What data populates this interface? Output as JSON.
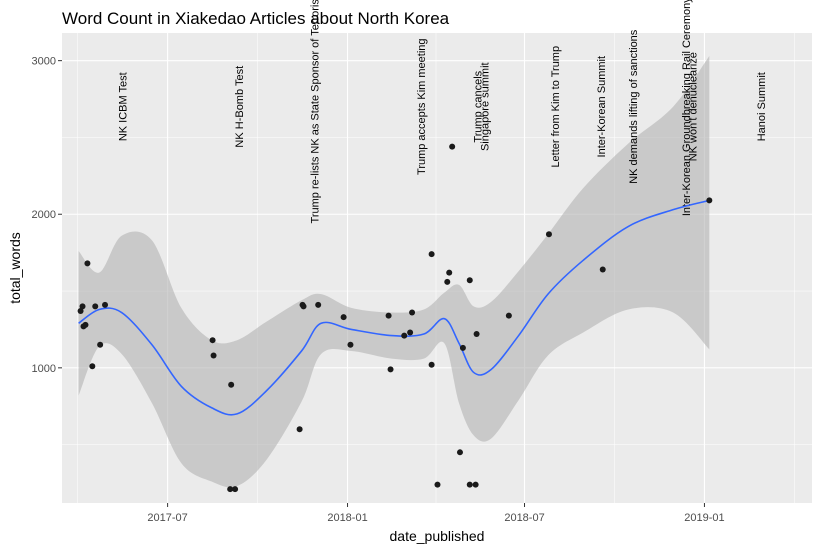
{
  "chart_data": {
    "type": "scatter",
    "title": "Word Count in Xiakedao Articles about North Korea",
    "xlabel": "date_published",
    "ylabel": "total_words",
    "xlim": [
      "2017-03-15",
      "2019-04-21"
    ],
    "ylim": [
      120,
      3180
    ],
    "x_ticks": [
      {
        "date": "2017-07-01",
        "label": "2017-07"
      },
      {
        "date": "2018-01-01",
        "label": "2018-01"
      },
      {
        "date": "2018-07-01",
        "label": "2018-07"
      },
      {
        "date": "2019-01-01",
        "label": "2019-01"
      }
    ],
    "y_ticks": [
      1000,
      2000,
      3000
    ],
    "grid": true,
    "colors": {
      "panel": "#ebebeb",
      "grid": "#ffffff",
      "points": "#1a1a1a",
      "smooth": "#3366ff",
      "ribbon": "#b3b3b3"
    },
    "points": [
      {
        "x": "2017-04-03",
        "y": 1370
      },
      {
        "x": "2017-04-05",
        "y": 1400
      },
      {
        "x": "2017-04-06",
        "y": 1270
      },
      {
        "x": "2017-04-08",
        "y": 1280
      },
      {
        "x": "2017-04-10",
        "y": 1680
      },
      {
        "x": "2017-04-15",
        "y": 1010
      },
      {
        "x": "2017-04-18",
        "y": 1400
      },
      {
        "x": "2017-04-23",
        "y": 1150
      },
      {
        "x": "2017-04-28",
        "y": 1410
      },
      {
        "x": "2017-08-16",
        "y": 1180
      },
      {
        "x": "2017-08-17",
        "y": 1080
      },
      {
        "x": "2017-09-03",
        "y": 210
      },
      {
        "x": "2017-09-04",
        "y": 890
      },
      {
        "x": "2017-09-08",
        "y": 210
      },
      {
        "x": "2017-11-13",
        "y": 600
      },
      {
        "x": "2017-11-16",
        "y": 1410
      },
      {
        "x": "2017-11-17",
        "y": 1400
      },
      {
        "x": "2017-12-02",
        "y": 1410
      },
      {
        "x": "2017-12-28",
        "y": 1330
      },
      {
        "x": "2018-01-04",
        "y": 1150
      },
      {
        "x": "2018-02-12",
        "y": 1340
      },
      {
        "x": "2018-02-14",
        "y": 990
      },
      {
        "x": "2018-02-28",
        "y": 1210
      },
      {
        "x": "2018-03-06",
        "y": 1230
      },
      {
        "x": "2018-03-08",
        "y": 1360
      },
      {
        "x": "2018-03-28",
        "y": 1020
      },
      {
        "x": "2018-03-28",
        "y": 1740
      },
      {
        "x": "2018-04-03",
        "y": 240
      },
      {
        "x": "2018-04-13",
        "y": 1560
      },
      {
        "x": "2018-04-15",
        "y": 1620
      },
      {
        "x": "2018-04-18",
        "y": 2440
      },
      {
        "x": "2018-04-26",
        "y": 450
      },
      {
        "x": "2018-04-29",
        "y": 1130
      },
      {
        "x": "2018-05-06",
        "y": 1570
      },
      {
        "x": "2018-05-06",
        "y": 240
      },
      {
        "x": "2018-05-12",
        "y": 240
      },
      {
        "x": "2018-05-13",
        "y": 1220
      },
      {
        "x": "2018-06-15",
        "y": 1340
      },
      {
        "x": "2018-07-26",
        "y": 1870
      },
      {
        "x": "2018-09-19",
        "y": 1640
      },
      {
        "x": "2019-01-06",
        "y": 2090
      }
    ],
    "smooth": [
      {
        "x": "2017-04-01",
        "y": 1290,
        "lo": 820,
        "hi": 1760
      },
      {
        "x": "2017-04-22",
        "y": 1380,
        "lo": 1140,
        "hi": 1620
      },
      {
        "x": "2017-05-15",
        "y": 1360,
        "lo": 1090,
        "hi": 1860
      },
      {
        "x": "2017-06-15",
        "y": 1150,
        "lo": 770,
        "hi": 1830
      },
      {
        "x": "2017-07-15",
        "y": 880,
        "lo": 380,
        "hi": 1390
      },
      {
        "x": "2017-08-15",
        "y": 740,
        "lo": 260,
        "hi": 1180
      },
      {
        "x": "2017-09-10",
        "y": 700,
        "lo": 230,
        "hi": 1180
      },
      {
        "x": "2017-10-10",
        "y": 850,
        "lo": 400,
        "hi": 1300
      },
      {
        "x": "2017-11-15",
        "y": 1110,
        "lo": 780,
        "hi": 1440
      },
      {
        "x": "2017-12-05",
        "y": 1290,
        "lo": 1090,
        "hi": 1480
      },
      {
        "x": "2018-01-05",
        "y": 1250,
        "lo": 1110,
        "hi": 1390
      },
      {
        "x": "2018-02-15",
        "y": 1210,
        "lo": 1060,
        "hi": 1360
      },
      {
        "x": "2018-03-20",
        "y": 1220,
        "lo": 1060,
        "hi": 1380
      },
      {
        "x": "2018-04-10",
        "y": 1320,
        "lo": 1160,
        "hi": 1490
      },
      {
        "x": "2018-04-25",
        "y": 1160,
        "lo": 770,
        "hi": 1540
      },
      {
        "x": "2018-05-10",
        "y": 970,
        "lo": 560,
        "hi": 1400
      },
      {
        "x": "2018-05-28",
        "y": 990,
        "lo": 540,
        "hi": 1430
      },
      {
        "x": "2018-06-25",
        "y": 1210,
        "lo": 790,
        "hi": 1630
      },
      {
        "x": "2018-07-25",
        "y": 1480,
        "lo": 1080,
        "hi": 1870
      },
      {
        "x": "2018-08-30",
        "y": 1700,
        "lo": 1230,
        "hi": 2170
      },
      {
        "x": "2018-10-15",
        "y": 1920,
        "lo": 1380,
        "hi": 2460
      },
      {
        "x": "2018-11-30",
        "y": 2030,
        "lo": 1360,
        "hi": 2700
      },
      {
        "x": "2019-01-06",
        "y": 2090,
        "lo": 1120,
        "hi": 3030
      }
    ],
    "annotations": [
      {
        "x": "2017-05-16",
        "label": "NK ICBM Test"
      },
      {
        "x": "2017-09-12",
        "label": "NK H-Bomb Test"
      },
      {
        "x": "2017-11-28",
        "label": "Trump re-lists NK as State Sponsor of Terrorism"
      },
      {
        "x": "2018-03-17",
        "label": "Trump accepts Kim meeting"
      },
      {
        "x": "2018-05-14",
        "label": "Trump cancels"
      },
      {
        "x": "2018-05-21",
        "label": "Singapore summit"
      },
      {
        "x": "2018-08-01",
        "label": "Letter from Kim to Trump"
      },
      {
        "x": "2018-09-17",
        "label": "Inter-Korean Summit"
      },
      {
        "x": "2018-10-20",
        "label": "NK demands lifting of sanctions"
      },
      {
        "x": "2018-12-13",
        "label": "Inter-Korean Groundbreaking Rail Ceremony"
      },
      {
        "x": "2018-12-20",
        "label": "NK won't denuclearize"
      },
      {
        "x": "2019-02-28",
        "label": "Hanoi Summit"
      }
    ]
  }
}
